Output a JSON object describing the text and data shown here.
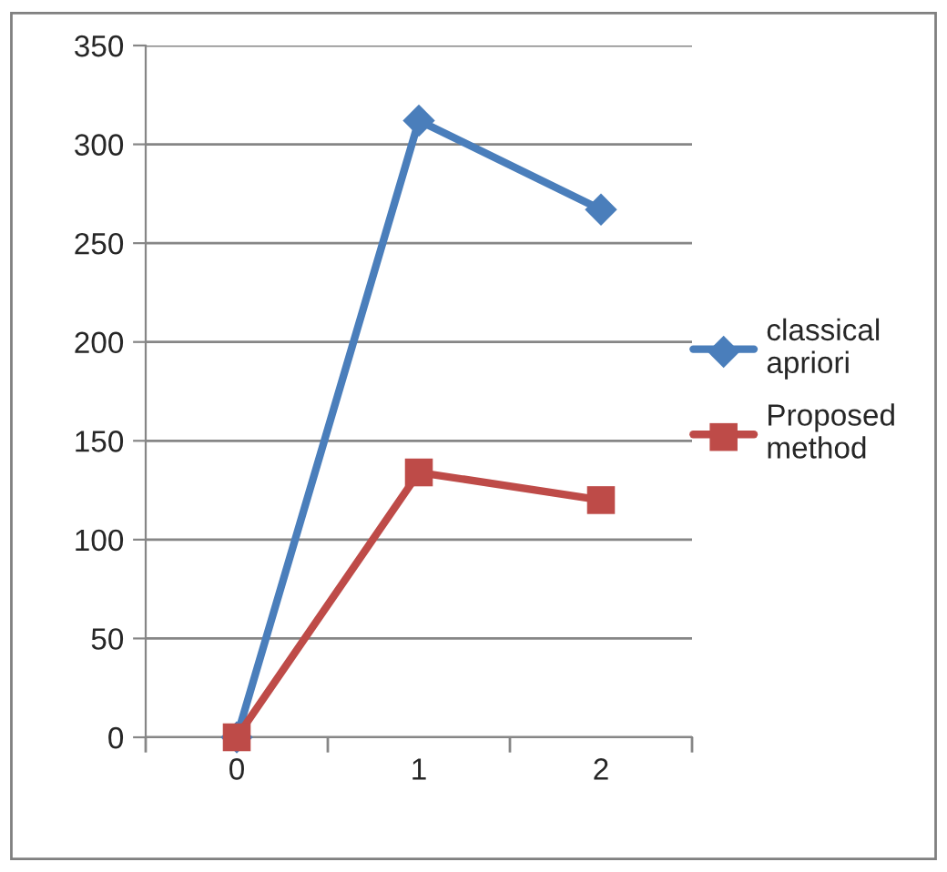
{
  "chart_data": {
    "type": "line",
    "x": [
      0,
      1,
      2
    ],
    "series": [
      {
        "name": "classical apriori",
        "color": "#4a7ebb",
        "values": [
          0,
          312,
          267
        ],
        "marker": "diamond"
      },
      {
        "name": "Proposed method",
        "color": "#be4b48",
        "values": [
          0,
          134,
          120
        ],
        "marker": "square"
      }
    ],
    "xlim": [
      -0.5,
      2.5
    ],
    "xticks": [
      {
        "value": -0.5,
        "label": null
      },
      0,
      {
        "value": 0.5,
        "label": null
      },
      1,
      {
        "value": 1.5,
        "label": null
      },
      2,
      {
        "value": 2.5,
        "label": null
      }
    ],
    "ylim": [
      0,
      350
    ],
    "yticks": [
      0,
      50,
      100,
      150,
      200,
      250,
      300,
      350
    ],
    "grid": "y",
    "legend": "right"
  }
}
